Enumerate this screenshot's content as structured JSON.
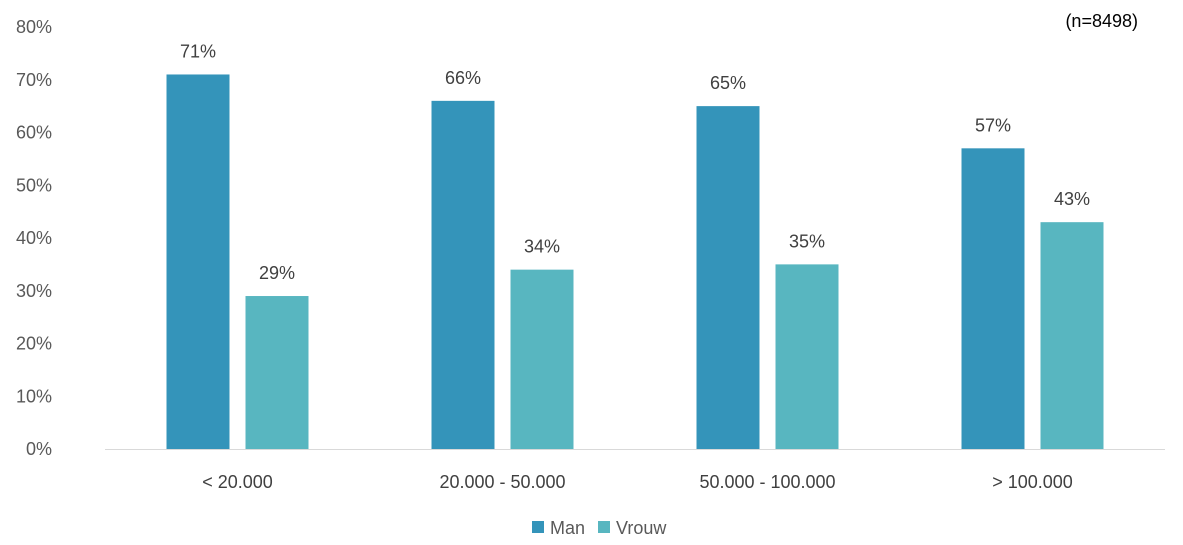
{
  "chart_data": {
    "type": "bar",
    "categories": [
      "< 20.000",
      "20.000 - 50.000",
      "50.000 - 100.000",
      "> 100.000"
    ],
    "series": [
      {
        "name": "Man",
        "values": [
          71,
          66,
          65,
          57
        ],
        "labels": [
          "71%",
          "66%",
          "65%",
          "57%"
        ],
        "color": "#3494BA"
      },
      {
        "name": "Vrouw",
        "values": [
          29,
          34,
          35,
          43
        ],
        "labels": [
          "29%",
          "34%",
          "35%",
          "43%"
        ],
        "color": "#58B6C0"
      }
    ],
    "ylim": [
      0,
      80
    ],
    "yticks": [
      0,
      10,
      20,
      30,
      40,
      50,
      60,
      70,
      80
    ],
    "ytick_labels": [
      "0%",
      "10%",
      "20%",
      "30%",
      "40%",
      "50%",
      "60%",
      "70%",
      "80%"
    ],
    "annotation": "(n=8498)",
    "legend": {
      "position": "bottom",
      "entries": [
        "Man",
        "Vrouw"
      ]
    },
    "grid": false,
    "axis_color": "#D9D9D9"
  }
}
